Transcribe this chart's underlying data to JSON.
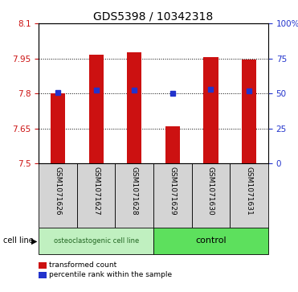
{
  "title": "GDS5398 / 10342318",
  "samples": [
    "GSM1071626",
    "GSM1071627",
    "GSM1071628",
    "GSM1071629",
    "GSM1071630",
    "GSM1071631"
  ],
  "bar_tops": [
    7.8,
    7.965,
    7.975,
    7.66,
    7.955,
    7.945
  ],
  "bar_bottom": 7.5,
  "percentile_values": [
    7.803,
    7.815,
    7.815,
    7.802,
    7.818,
    7.812
  ],
  "ylim_left": [
    7.5,
    8.1
  ],
  "ylim_right": [
    0,
    100
  ],
  "yticks_left": [
    7.5,
    7.65,
    7.8,
    7.95,
    8.1
  ],
  "ytick_labels_left": [
    "7.5",
    "7.65",
    "7.8",
    "7.95",
    "8.1"
  ],
  "yticks_right": [
    0,
    25,
    50,
    75,
    100
  ],
  "ytick_labels_right": [
    "0",
    "25",
    "50",
    "75",
    "100%"
  ],
  "grid_lines": [
    7.65,
    7.8,
    7.95
  ],
  "bar_color": "#cc1111",
  "marker_color": "#2233cc",
  "group1_label": "osteoclastogenic cell line",
  "group2_label": "control",
  "group1_indices": [
    0,
    1,
    2
  ],
  "group2_indices": [
    3,
    4,
    5
  ],
  "cell_line_label": "cell line",
  "legend_bar_label": "transformed count",
  "legend_marker_label": "percentile rank within the sample",
  "sample_bg_color": "#d4d4d4",
  "group1_bg": "#c0f0c0",
  "group2_bg": "#5de05d",
  "title_fontsize": 10,
  "tick_fontsize": 7.5,
  "bar_width": 0.38
}
